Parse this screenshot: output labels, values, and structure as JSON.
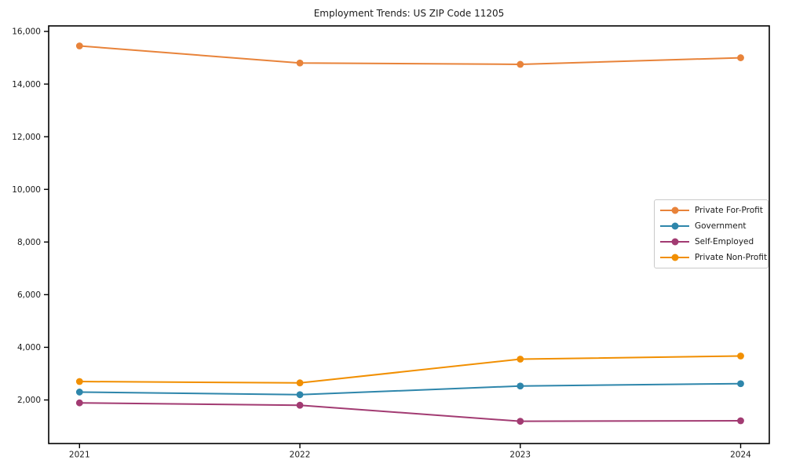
{
  "figure": {
    "title": "Employment Trends: US ZIP Code 11205"
  },
  "chart_data": {
    "type": "line",
    "title": "Employment Trends: US ZIP Code 11205",
    "xlabel": "",
    "ylabel": "",
    "x": [
      2021,
      2022,
      2023,
      2024
    ],
    "x_tick_labels": [
      "2021",
      "2022",
      "2023",
      "2024"
    ],
    "series": [
      {
        "name": "Private For-Profit",
        "color": "#E8833A",
        "values": [
          15450,
          14800,
          14750,
          15000
        ]
      },
      {
        "name": "Government",
        "color": "#2E86AB",
        "values": [
          2300,
          2200,
          2530,
          2620
        ]
      },
      {
        "name": "Self-Employed",
        "color": "#A23B72",
        "values": [
          1890,
          1800,
          1190,
          1210
        ]
      },
      {
        "name": "Private Non-Profit",
        "color": "#F18F01",
        "values": [
          2700,
          2650,
          3550,
          3670
        ]
      }
    ],
    "yticks": [
      2000,
      4000,
      6000,
      8000,
      10000,
      12000,
      14000,
      16000
    ],
    "ytick_labels": [
      "2,000",
      "4,000",
      "6,000",
      "8,000",
      "10,000",
      "12,000",
      "14,000",
      "16,000"
    ],
    "ylim": [
      345,
      16210
    ],
    "xlim": [
      2020.86,
      2024.13
    ],
    "grid": false,
    "marker": "circle",
    "legend_position": "center-right",
    "axis_color": "#000000",
    "tick_label_color": "#1a1a1a"
  }
}
